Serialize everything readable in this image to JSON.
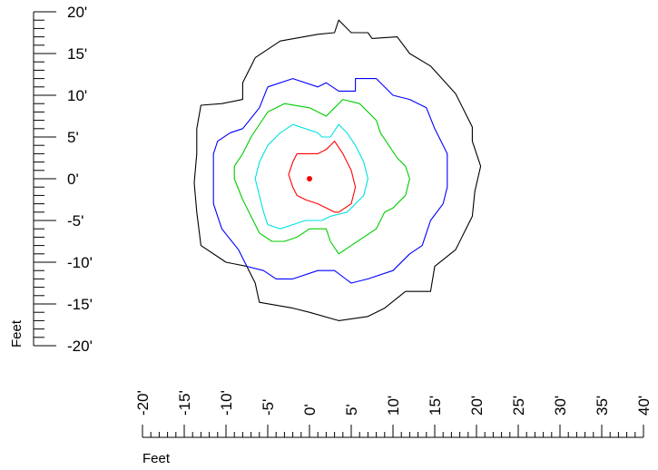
{
  "chart_data": {
    "type": "line",
    "title": "",
    "xlabel": "Feet",
    "ylabel": "Feet",
    "x_range": [
      -20,
      40
    ],
    "y_range": [
      -20,
      20
    ],
    "x_ticks": [
      "-20'",
      "-15'",
      "-10'",
      "-5'",
      "0'",
      "5'",
      "10'",
      "15'",
      "20'",
      "25'",
      "30'",
      "35'",
      "40'"
    ],
    "y_ticks": [
      "20'",
      "15'",
      "10'",
      "5'",
      "0'",
      "-5'",
      "-10'",
      "-15'",
      "-20'"
    ],
    "grid": false,
    "legend": "none",
    "center_point": {
      "x": 0,
      "y": 0,
      "color": "#ff0000"
    },
    "series": [
      {
        "color": "#000000",
        "points": [
          [
            -6.5,
            14.5
          ],
          [
            -3.5,
            16.5
          ],
          [
            1,
            17.3
          ],
          [
            3,
            17.5
          ],
          [
            3.5,
            19
          ],
          [
            5,
            17.5
          ],
          [
            7,
            17.5
          ],
          [
            7.5,
            16.8
          ],
          [
            10.5,
            17
          ],
          [
            12,
            15
          ],
          [
            14.5,
            13.5
          ],
          [
            17.5,
            10.2
          ],
          [
            19.5,
            6.2
          ],
          [
            19.5,
            4.5
          ],
          [
            20.5,
            1.5
          ],
          [
            19.8,
            -1.5
          ],
          [
            19.5,
            -4.5
          ],
          [
            17.5,
            -8.5
          ],
          [
            15,
            -10.5
          ],
          [
            14.5,
            -13.5
          ],
          [
            11.5,
            -13.5
          ],
          [
            9,
            -15.5
          ],
          [
            7,
            -16.5
          ],
          [
            3.5,
            -17
          ],
          [
            0,
            -16
          ],
          [
            -2,
            -15.5
          ],
          [
            -6,
            -14.8
          ],
          [
            -6.5,
            -12.5
          ],
          [
            -7.5,
            -10.5
          ],
          [
            -10,
            -10
          ],
          [
            -13,
            -8
          ],
          [
            -13.5,
            -4
          ],
          [
            -13.8,
            -0.5
          ],
          [
            -13.5,
            3
          ],
          [
            -13.5,
            6
          ],
          [
            -13,
            8.8
          ],
          [
            -10.5,
            9
          ],
          [
            -8,
            9.5
          ],
          [
            -8,
            11.5
          ],
          [
            -6.5,
            14.5
          ]
        ]
      },
      {
        "color": "#0000ff",
        "points": [
          [
            -5,
            11
          ],
          [
            -2,
            12
          ],
          [
            1,
            11
          ],
          [
            2,
            11.5
          ],
          [
            3.5,
            10.5
          ],
          [
            5.5,
            10.5
          ],
          [
            5.5,
            12
          ],
          [
            8,
            12
          ],
          [
            10,
            10
          ],
          [
            12,
            9.5
          ],
          [
            14,
            8.5
          ],
          [
            15,
            6
          ],
          [
            16.5,
            3
          ],
          [
            16.5,
            -1
          ],
          [
            16,
            -3
          ],
          [
            14.5,
            -5
          ],
          [
            13.5,
            -8
          ],
          [
            12,
            -9
          ],
          [
            10,
            -11
          ],
          [
            7,
            -12
          ],
          [
            5,
            -12.5
          ],
          [
            3,
            -11
          ],
          [
            1,
            -11
          ],
          [
            -2,
            -12
          ],
          [
            -4,
            -12
          ],
          [
            -5.5,
            -11
          ],
          [
            -7.5,
            -10.5
          ],
          [
            -8.5,
            -8.5
          ],
          [
            -10.5,
            -6
          ],
          [
            -11.5,
            -3
          ],
          [
            -11.5,
            0
          ],
          [
            -11.5,
            3
          ],
          [
            -11,
            4.5
          ],
          [
            -9.5,
            5.5
          ],
          [
            -8,
            6
          ],
          [
            -6,
            8.5
          ],
          [
            -5,
            11
          ]
        ]
      },
      {
        "color": "#00cc00",
        "points": [
          [
            -5,
            8
          ],
          [
            -3,
            9
          ],
          [
            0,
            8.5
          ],
          [
            2,
            7.5
          ],
          [
            3,
            8.5
          ],
          [
            4,
            9.5
          ],
          [
            6,
            9
          ],
          [
            8,
            7
          ],
          [
            8.5,
            5.5
          ],
          [
            9.5,
            4
          ],
          [
            10.5,
            2.5
          ],
          [
            11.5,
            1.5
          ],
          [
            12,
            0
          ],
          [
            11.5,
            -2
          ],
          [
            10,
            -3.5
          ],
          [
            9,
            -4
          ],
          [
            8,
            -6
          ],
          [
            5,
            -8
          ],
          [
            3.5,
            -9
          ],
          [
            2.5,
            -7.5
          ],
          [
            2,
            -6
          ],
          [
            0,
            -6
          ],
          [
            -1.5,
            -7
          ],
          [
            -3,
            -7.5
          ],
          [
            -4.5,
            -7.5
          ],
          [
            -6,
            -6.5
          ],
          [
            -7,
            -4.5
          ],
          [
            -8,
            -2.5
          ],
          [
            -9,
            0
          ],
          [
            -9,
            1.5
          ],
          [
            -8,
            3
          ],
          [
            -7,
            5
          ],
          [
            -5,
            8
          ]
        ]
      },
      {
        "color": "#00e0e0",
        "points": [
          [
            -3.5,
            5.5
          ],
          [
            -2,
            6.5
          ],
          [
            1,
            5.5
          ],
          [
            1.5,
            5
          ],
          [
            2.5,
            5
          ],
          [
            3.5,
            6.5
          ],
          [
            4.5,
            5.5
          ],
          [
            5.5,
            4
          ],
          [
            6.5,
            2
          ],
          [
            7,
            0
          ],
          [
            6.5,
            -2
          ],
          [
            5.5,
            -3
          ],
          [
            4.5,
            -4
          ],
          [
            2.5,
            -4.5
          ],
          [
            1.5,
            -5
          ],
          [
            -0.5,
            -5
          ],
          [
            -2,
            -5.5
          ],
          [
            -3.5,
            -6
          ],
          [
            -5,
            -5.5
          ],
          [
            -5.5,
            -4
          ],
          [
            -6,
            -2
          ],
          [
            -6.5,
            0
          ],
          [
            -6,
            2
          ],
          [
            -5,
            4
          ],
          [
            -3.5,
            5.5
          ]
        ]
      },
      {
        "color": "#ff0000",
        "points": [
          [
            -1.5,
            3
          ],
          [
            0,
            3
          ],
          [
            1,
            3
          ],
          [
            2,
            3.5
          ],
          [
            3,
            4.5
          ],
          [
            4,
            3
          ],
          [
            5,
            1
          ],
          [
            5.5,
            -1
          ],
          [
            5,
            -3
          ],
          [
            3.5,
            -4
          ],
          [
            3,
            -4
          ],
          [
            1,
            -3
          ],
          [
            -0.5,
            -2.5
          ],
          [
            -1.5,
            -2
          ],
          [
            -2,
            -1
          ],
          [
            -2.5,
            0.5
          ],
          [
            -2,
            2
          ],
          [
            -1.5,
            3
          ]
        ]
      }
    ]
  }
}
